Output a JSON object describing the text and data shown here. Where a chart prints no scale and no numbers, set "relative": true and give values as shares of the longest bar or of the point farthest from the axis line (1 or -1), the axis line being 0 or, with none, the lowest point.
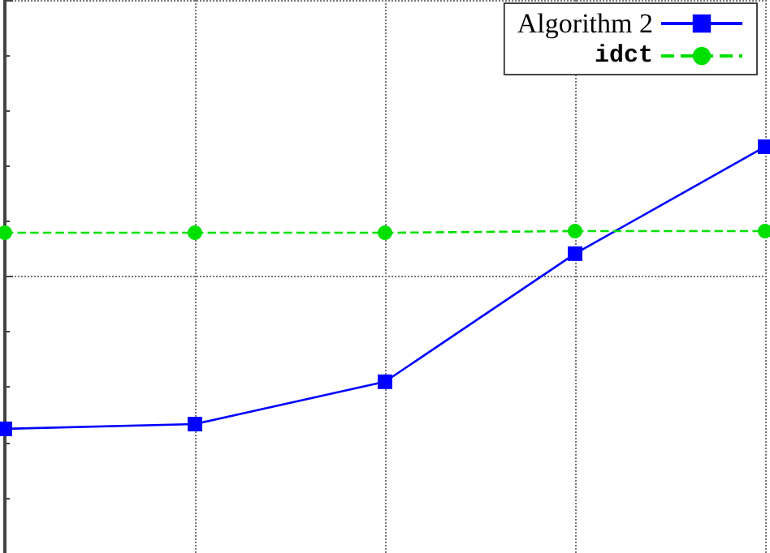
{
  "chart_data": {
    "type": "line",
    "relative": true,
    "categories": [
      null,
      null,
      null,
      null,
      null
    ],
    "series": [
      {
        "name": "Algorithm 2",
        "color": "#0000ff",
        "values": [
          0,
          0.017,
          0.167,
          0.621,
          1
        ],
        "marker": "square",
        "line_style": "solid"
      },
      {
        "name": "idct",
        "color": "#00e000",
        "values": [
          0.695,
          0.695,
          0.695,
          0.701,
          0.701
        ],
        "marker": "circle",
        "line_style": "dashed"
      }
    ],
    "grid": true,
    "legend": "top right",
    "tick_labels": false
  }
}
